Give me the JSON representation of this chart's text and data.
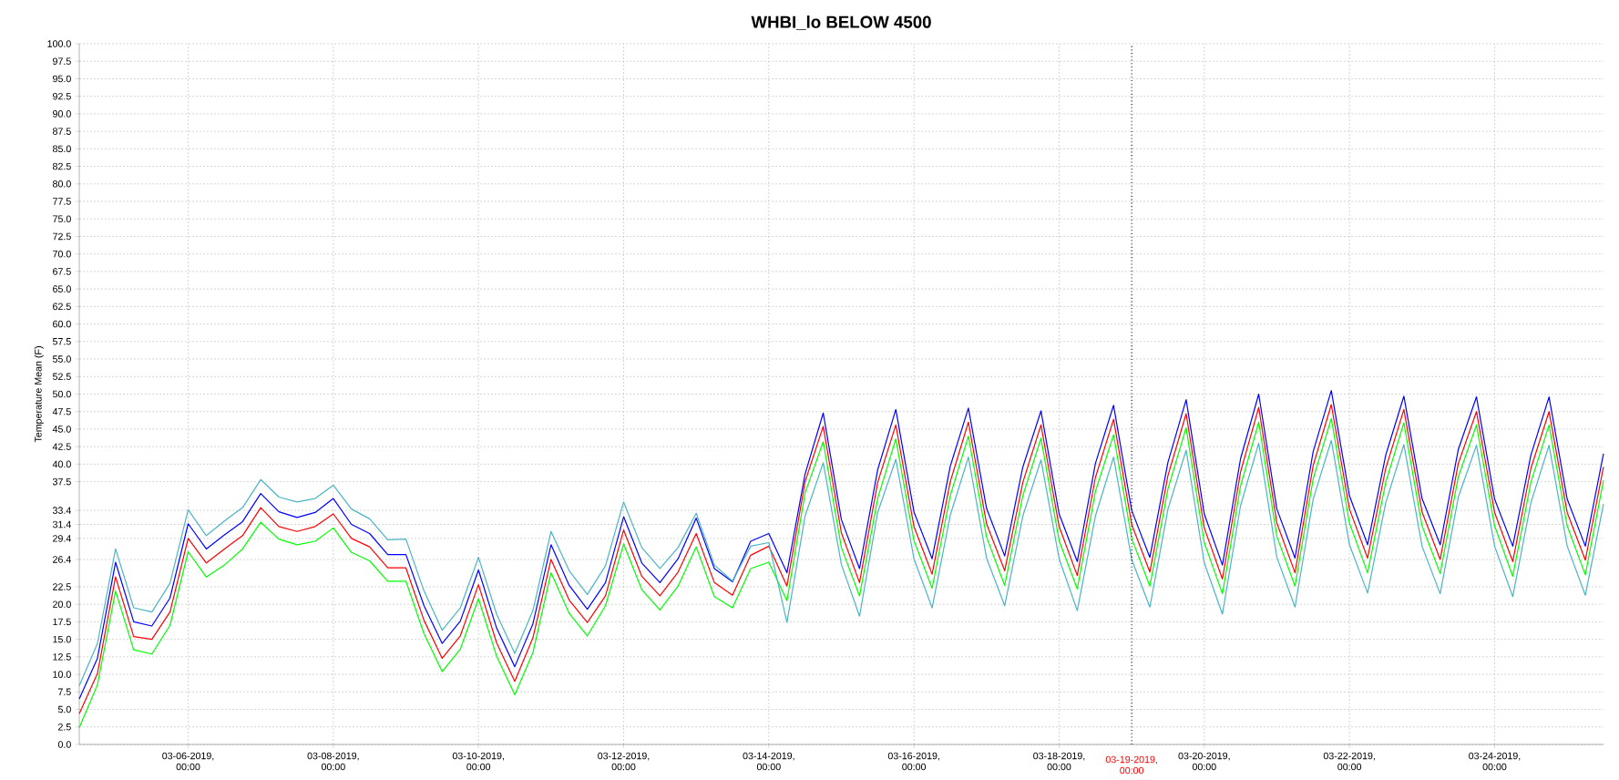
{
  "chart_data": {
    "type": "line",
    "title": "WHBI_lo BELOW 4500",
    "ylabel": "Temperature Mean (F)",
    "x": [
      "2019-03-04T12:00",
      "2019-03-04T18:00",
      "2019-03-05T00:00",
      "2019-03-05T06:00",
      "2019-03-05T12:00",
      "2019-03-05T18:00",
      "2019-03-06T00:00",
      "2019-03-06T06:00",
      "2019-03-06T12:00",
      "2019-03-06T18:00",
      "2019-03-07T00:00",
      "2019-03-07T06:00",
      "2019-03-07T12:00",
      "2019-03-07T18:00",
      "2019-03-08T00:00",
      "2019-03-08T06:00",
      "2019-03-08T12:00",
      "2019-03-08T18:00",
      "2019-03-09T00:00",
      "2019-03-09T06:00",
      "2019-03-09T12:00",
      "2019-03-09T18:00",
      "2019-03-10T00:00",
      "2019-03-10T06:00",
      "2019-03-10T12:00",
      "2019-03-10T18:00",
      "2019-03-11T00:00",
      "2019-03-11T06:00",
      "2019-03-11T12:00",
      "2019-03-11T18:00",
      "2019-03-12T00:00",
      "2019-03-12T06:00",
      "2019-03-12T12:00",
      "2019-03-12T18:00",
      "2019-03-13T00:00",
      "2019-03-13T06:00",
      "2019-03-13T12:00",
      "2019-03-13T18:00",
      "2019-03-14T00:00",
      "2019-03-14T06:00",
      "2019-03-14T12:00",
      "2019-03-14T18:00",
      "2019-03-15T00:00",
      "2019-03-15T06:00",
      "2019-03-15T12:00",
      "2019-03-15T18:00",
      "2019-03-16T00:00",
      "2019-03-16T06:00",
      "2019-03-16T12:00",
      "2019-03-16T18:00",
      "2019-03-17T00:00",
      "2019-03-17T06:00",
      "2019-03-17T12:00",
      "2019-03-17T18:00",
      "2019-03-18T00:00",
      "2019-03-18T06:00",
      "2019-03-18T12:00",
      "2019-03-18T18:00",
      "2019-03-19T00:00",
      "2019-03-19T06:00",
      "2019-03-19T12:00",
      "2019-03-19T18:00",
      "2019-03-20T00:00",
      "2019-03-20T06:00",
      "2019-03-20T12:00",
      "2019-03-20T18:00",
      "2019-03-21T00:00",
      "2019-03-21T06:00",
      "2019-03-21T12:00",
      "2019-03-21T18:00",
      "2019-03-22T00:00",
      "2019-03-22T06:00",
      "2019-03-22T12:00",
      "2019-03-22T18:00",
      "2019-03-23T00:00",
      "2019-03-23T06:00",
      "2019-03-23T12:00",
      "2019-03-23T18:00",
      "2019-03-24T00:00",
      "2019-03-24T06:00",
      "2019-03-24T12:00",
      "2019-03-24T18:00",
      "2019-03-25T00:00",
      "2019-03-25T06:00",
      "2019-03-25T12:00"
    ],
    "series": [
      {
        "color": "#0000ff",
        "values": [
          6.5,
          12.3,
          26.0,
          17.5,
          16.9,
          20.9,
          31.5,
          27.9,
          29.9,
          31.8,
          35.8,
          33.2,
          32.4,
          33.1,
          35.1,
          31.4,
          30.1,
          27.1,
          27.1,
          19.8,
          14.4,
          17.6,
          24.9,
          16.6,
          11.1,
          17.2,
          28.5,
          22.7,
          19.3,
          23.1,
          32.5,
          25.9,
          23.1,
          26.5,
          32.3,
          25.1,
          23.2,
          29.0,
          30.1,
          24.5,
          38.6,
          47.3,
          32.1,
          25.1,
          39.2,
          47.8,
          33.2,
          26.5,
          39.7,
          48.0,
          33.7,
          26.9,
          39.6,
          47.6,
          32.9,
          26.1,
          40.1,
          48.4,
          33.4,
          26.7,
          40.3,
          49.2,
          32.9,
          25.6,
          40.8,
          50.0,
          33.6,
          26.6,
          41.8,
          50.5,
          35.5,
          28.5,
          41.3,
          49.7,
          35.1,
          28.5,
          42.1,
          49.6,
          35.0,
          28.3,
          41.3,
          49.6,
          35.0,
          28.3,
          41.5
        ]
      },
      {
        "color": "#ff0000",
        "values": [
          4.4,
          10.1,
          23.9,
          15.4,
          15.0,
          18.9,
          29.4,
          25.9,
          27.9,
          29.8,
          33.8,
          31.1,
          30.4,
          31.1,
          32.9,
          29.4,
          28.2,
          25.2,
          25.2,
          17.7,
          12.3,
          15.5,
          22.8,
          14.5,
          9.0,
          15.2,
          26.4,
          20.6,
          17.4,
          21.2,
          30.6,
          24.0,
          21.2,
          24.6,
          30.1,
          23.1,
          21.3,
          27.0,
          28.3,
          22.6,
          37.5,
          45.4,
          30.2,
          23.1,
          37.4,
          45.6,
          31.1,
          24.3,
          37.5,
          46.0,
          31.5,
          24.8,
          37.4,
          45.6,
          31.1,
          24.1,
          38.1,
          46.4,
          31.4,
          24.6,
          38.4,
          47.2,
          30.9,
          23.6,
          38.9,
          48.1,
          31.6,
          24.5,
          39.8,
          48.5,
          33.6,
          26.6,
          39.4,
          47.8,
          33.2,
          26.4,
          40.1,
          47.5,
          33.1,
          26.1,
          39.4,
          47.5,
          33.1,
          26.3,
          39.6
        ]
      },
      {
        "color": "#00ff00",
        "values": [
          2.4,
          8.5,
          21.9,
          13.5,
          12.9,
          17.0,
          27.5,
          23.9,
          25.6,
          27.9,
          31.7,
          29.3,
          28.5,
          29.0,
          30.9,
          27.4,
          26.2,
          23.3,
          23.3,
          15.8,
          10.4,
          13.6,
          20.8,
          12.6,
          7.1,
          13.1,
          24.5,
          18.7,
          15.5,
          19.8,
          28.6,
          22.1,
          19.2,
          22.6,
          28.2,
          21.1,
          19.5,
          25.1,
          26.0,
          20.5,
          35.9,
          43.2,
          28.1,
          21.2,
          35.1,
          43.6,
          29.1,
          22.3,
          35.5,
          44.0,
          29.6,
          22.7,
          35.5,
          43.7,
          29.1,
          22.2,
          36.1,
          44.2,
          29.4,
          22.6,
          36.5,
          45.2,
          28.8,
          21.5,
          36.9,
          46.0,
          29.7,
          22.6,
          37.9,
          46.5,
          31.6,
          24.5,
          37.4,
          45.9,
          31.2,
          24.4,
          38.2,
          45.6,
          31.2,
          24.0,
          37.4,
          45.6,
          31.2,
          24.2,
          37.7
        ]
      },
      {
        "color": "#4ab5c4",
        "values": [
          8.4,
          14.4,
          27.9,
          19.5,
          18.9,
          23.0,
          33.5,
          29.8,
          31.9,
          33.8,
          37.8,
          35.3,
          34.6,
          35.1,
          37.0,
          33.6,
          32.2,
          29.2,
          29.3,
          21.9,
          16.3,
          19.5,
          26.7,
          18.6,
          13.0,
          19.1,
          30.4,
          24.8,
          21.4,
          25.5,
          34.6,
          28.1,
          25.1,
          28.1,
          33.0,
          25.6,
          23.3,
          28.3,
          28.8,
          17.4,
          32.6,
          40.2,
          25.7,
          18.3,
          33.1,
          40.7,
          26.5,
          19.5,
          32.7,
          41.0,
          26.6,
          19.8,
          32.6,
          40.6,
          26.5,
          19.1,
          32.6,
          41.0,
          26.4,
          19.6,
          33.6,
          42.0,
          25.9,
          18.6,
          34.1,
          43.0,
          26.7,
          19.6,
          35.0,
          43.4,
          28.5,
          21.6,
          34.5,
          42.8,
          28.3,
          21.5,
          35.3,
          42.7,
          28.3,
          21.1,
          34.5,
          42.7,
          28.3,
          21.3,
          34.3
        ]
      }
    ],
    "xlim": [
      "2019-03-04T12:00",
      "2019-03-25T12:00"
    ],
    "xticks": [
      {
        "value": "2019-03-06T00:00",
        "label": "03-06-2019, 00:00"
      },
      {
        "value": "2019-03-08T00:00",
        "label": "03-08-2019, 00:00"
      },
      {
        "value": "2019-03-10T00:00",
        "label": "03-10-2019, 00:00"
      },
      {
        "value": "2019-03-12T00:00",
        "label": "03-12-2019, 00:00"
      },
      {
        "value": "2019-03-14T00:00",
        "label": "03-14-2019, 00:00"
      },
      {
        "value": "2019-03-16T00:00",
        "label": "03-16-2019, 00:00"
      },
      {
        "value": "2019-03-18T00:00",
        "label": "03-18-2019, 00:00"
      },
      {
        "value": "2019-03-20T00:00",
        "label": "03-20-2019, 00:00"
      },
      {
        "value": "2019-03-22T00:00",
        "label": "03-22-2019, 00:00"
      },
      {
        "value": "2019-03-24T00:00",
        "label": "03-24-2019, 00:00"
      }
    ],
    "ylim": [
      0,
      100
    ],
    "yticks": [
      {
        "value": 0,
        "label": "0.0"
      },
      2.5,
      {
        "value": 5,
        "label": "5.0"
      },
      7.5,
      {
        "value": 10,
        "label": "10.0"
      },
      12.5,
      {
        "value": 15,
        "label": "15.0"
      },
      17.5,
      {
        "value": 20,
        "label": "20.0"
      },
      22.5,
      26.4,
      29.4,
      31.4,
      33.4,
      37.5,
      {
        "value": 40,
        "label": "40.0"
      },
      42.5,
      {
        "value": 45,
        "label": "45.0"
      },
      47.5,
      {
        "value": 50,
        "label": "50.0"
      },
      52.5,
      {
        "value": 55,
        "label": "55.0"
      },
      57.5,
      {
        "value": 60,
        "label": "60.0"
      },
      62.5,
      {
        "value": 65,
        "label": "65.0"
      },
      67.5,
      {
        "value": 70,
        "label": "70.0"
      },
      72.5,
      {
        "value": 75,
        "label": "75.0"
      },
      77.5,
      {
        "value": 80,
        "label": "80.0"
      },
      82.5,
      {
        "value": 85,
        "label": "85.0"
      },
      87.5,
      {
        "value": 90,
        "label": "90.0"
      },
      92.5,
      {
        "value": 95,
        "label": "95.0"
      },
      97.5,
      {
        "value": 100,
        "label": "100.0"
      }
    ],
    "ref_lines": [
      {
        "axis": "x",
        "value": "2019-03-19T00:00",
        "label": "03-19-2019, 00:00",
        "color": "#000000",
        "line_style": "dotted"
      }
    ],
    "grid": true,
    "line_style": "solid"
  }
}
